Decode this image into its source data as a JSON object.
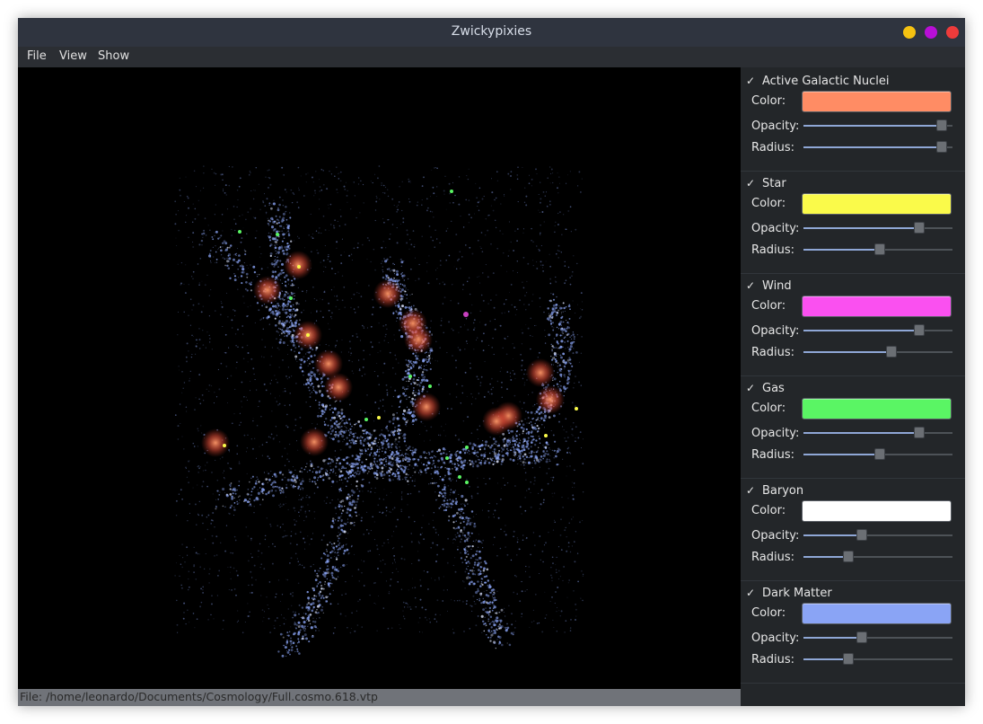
{
  "window": {
    "title": "Zwickypixies",
    "buttons": [
      {
        "name": "minimize",
        "color": "#f5c211"
      },
      {
        "name": "maximize",
        "color": "#b80fd6"
      },
      {
        "name": "close",
        "color": "#ee3b3b"
      }
    ]
  },
  "menu": [
    "File",
    "View",
    "Show"
  ],
  "status": "File: /home/leonardo/Documents/Cosmology/Full.cosmo.618.vtp",
  "panel": {
    "labels": {
      "color": "Color:",
      "opacity": "Opacity:",
      "radius": "Radius:"
    },
    "check_glyph": "✓",
    "groups": [
      {
        "id": "agn",
        "title": "Active Galactic Nuclei",
        "checked": true,
        "color": "#ff8c64",
        "opacity": 0.93,
        "radius": 0.93
      },
      {
        "id": "star",
        "title": "Star",
        "checked": true,
        "color": "#fafa4a",
        "opacity": 0.78,
        "radius": 0.51
      },
      {
        "id": "wind",
        "title": "Wind",
        "checked": true,
        "color": "#fa50f0",
        "opacity": 0.78,
        "radius": 0.59
      },
      {
        "id": "gas",
        "title": "Gas",
        "checked": true,
        "color": "#5af564",
        "opacity": 0.78,
        "radius": 0.51
      },
      {
        "id": "baryon",
        "title": "Baryon",
        "checked": true,
        "color": "#ffffff",
        "opacity": 0.39,
        "radius": 0.3
      },
      {
        "id": "dark",
        "title": "Dark Matter",
        "checked": true,
        "color": "#8aa4f5",
        "opacity": 0.39,
        "radius": 0.3
      }
    ]
  }
}
